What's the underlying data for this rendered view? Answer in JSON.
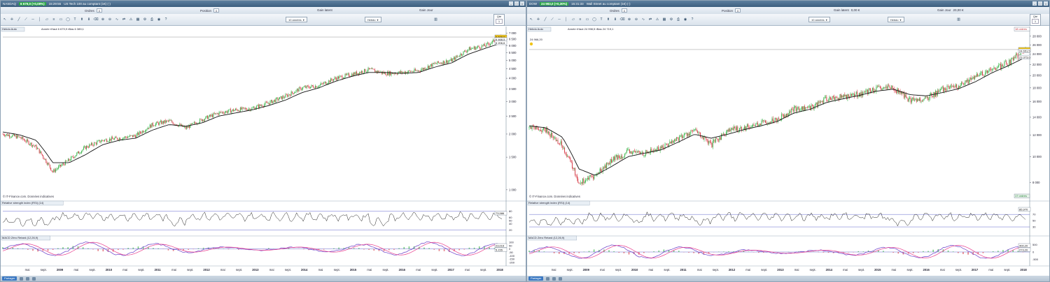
{
  "panes": [
    {
      "symbol": "NASDAQ",
      "price_change": "6 679,0 (+0,08%)",
      "time": "15:29:55",
      "instrument": "US Tech 100 au comptant (1€) (-)",
      "orders_label": "Ordres",
      "orders_value": "0",
      "position_label": "Position",
      "position_value": "0",
      "pnl_label": "Gain latent",
      "pnl_value": "",
      "day_label": "Gain Jour",
      "day_value": "",
      "qty_label": "Qté",
      "qty_value": "1",
      "period": "10 années",
      "chart_type": "Hebdo",
      "indicator_label": "Hebdo Auto",
      "info_line": "Année  ▪Haut 6 679,9 ▪Bas 6 389,1",
      "watermark": "© IT-Finance.com. Données indicatives",
      "rsi_label": "Relative strength index (RSI) (14)",
      "macd_label": "MACD Zéro Retard (12,26,9)",
      "share_label": "Partager",
      "price_tags": [
        "6 679,0",
        "6 468,5",
        "6 206,6"
      ],
      "orders_top": "",
      "orders_bottom": "",
      "level_label": "",
      "rsi_tag": "73,586",
      "macd_tags": [
        "23,019",
        "5,155"
      ]
    },
    {
      "symbol": "DOW",
      "price_change": "24 983,0 (+0,30%)",
      "time": "15:31:33",
      "instrument": "Wall Street au comptant (1€) (-)",
      "orders_label": "Ordres",
      "orders_value": "0",
      "position_label": "Position",
      "position_value": "0",
      "pnl_label": "Gain latent",
      "pnl_value": "0,00 €",
      "day_label": "Gain Jour",
      "day_value": "20,00 €",
      "qty_label": "Qté",
      "qty_value": "1",
      "period": "10 années",
      "chart_type": "Hebdo",
      "indicator_label": "Hebdo Auto",
      "info_line": "Année  ▪Haut 24 998,5 ▪Bas 24 719,1",
      "watermark": "© IT-Finance.com. Données indicatives",
      "rsi_label": "Relative strength index (RSI) (14)",
      "macd_label": "MACD Zéro Retard (12,26,9)",
      "share_label": "Partager",
      "price_tags": [
        "24 983,0",
        "24 651,5",
        "23 373,6"
      ],
      "orders_top": "18 ordres",
      "orders_bottom": "17 ordres",
      "level_label": "24 966,20",
      "rsi_tag": "85,970",
      "macd_tags": [
        "400,20",
        "273,20"
      ]
    }
  ],
  "chart_data": [
    {
      "type": "line",
      "title": "NASDAQ",
      "x": [
        "2008-01",
        "2008-05",
        "2008-09",
        "2009-01",
        "2009-05",
        "2009-09",
        "2010-01",
        "2010-05",
        "2010-09",
        "2011-01",
        "2011-05",
        "2011-09",
        "2012-01",
        "2012-05",
        "2012-09",
        "2013-01",
        "2013-05",
        "2013-09",
        "2014-01",
        "2014-05",
        "2014-09",
        "2015-01",
        "2015-05",
        "2015-09",
        "2016-01",
        "2016-05",
        "2016-09",
        "2017-01",
        "2017-05",
        "2017-09",
        "2018-01"
      ],
      "series": [
        {
          "values": [
            2000,
            1920,
            1700,
            1250,
            1450,
            1700,
            1850,
            1900,
            1960,
            2250,
            2350,
            2150,
            2400,
            2600,
            2700,
            2750,
            2950,
            3200,
            3550,
            3650,
            4000,
            4200,
            4450,
            4250,
            4300,
            4400,
            4800,
            5000,
            5750,
            6000,
            6679
          ]
        },
        {
          "values": [
            2050,
            1980,
            1850,
            1400,
            1400,
            1550,
            1750,
            1850,
            1900,
            2100,
            2250,
            2200,
            2300,
            2500,
            2600,
            2700,
            2850,
            3050,
            3350,
            3550,
            3850,
            4100,
            4300,
            4300,
            4250,
            4300,
            4600,
            4850,
            5400,
            5800,
            6206
          ]
        }
      ],
      "y_ticks": [
        "1 000",
        "1 500",
        "2 000",
        "2 500",
        "3 000",
        "3 500",
        "4 000",
        "4 500",
        "5 000",
        "5 500",
        "6 000",
        "6 500",
        "7 000"
      ],
      "x_ticks": [
        "mai",
        "sept.",
        "2009",
        "mai",
        "sept.",
        "2010",
        "mai",
        "sept.",
        "2011",
        "mai",
        "sept.",
        "2012",
        "mai",
        "sept.",
        "2013",
        "mai",
        "sept.",
        "2014",
        "mai",
        "sept.",
        "2015",
        "mai",
        "sept.",
        "2016",
        "mai",
        "sept.",
        "2017",
        "mai",
        "sept.",
        "2018"
      ],
      "ylim": [
        900,
        7100
      ],
      "log_scale": true,
      "rsi_ticks": [
        "80",
        "60",
        "50",
        "40",
        "20"
      ],
      "rsi_ylim": [
        10,
        95
      ],
      "macd_ticks": [
        "100",
        "50",
        "0",
        "-50",
        "-100",
        "-150",
        "-200"
      ],
      "macd_ylim": [
        -220,
        130
      ]
    },
    {
      "type": "line",
      "title": "DOW",
      "x": [
        "2008-01",
        "2008-05",
        "2008-09",
        "2009-01",
        "2009-05",
        "2009-09",
        "2010-01",
        "2010-05",
        "2010-09",
        "2011-01",
        "2011-05",
        "2011-09",
        "2012-01",
        "2012-05",
        "2012-09",
        "2013-01",
        "2013-05",
        "2013-09",
        "2014-01",
        "2014-05",
        "2014-09",
        "2015-01",
        "2015-05",
        "2015-09",
        "2016-01",
        "2016-05",
        "2016-09",
        "2017-01",
        "2017-05",
        "2017-09",
        "2018-01"
      ],
      "series": [
        {
          "values": [
            12800,
            12500,
            11000,
            8000,
            8500,
            9700,
            10400,
            10300,
            10800,
            11700,
            12500,
            11000,
            12500,
            12800,
            13300,
            13800,
            15000,
            15200,
            16400,
            16700,
            17100,
            17800,
            18000,
            16200,
            16400,
            17800,
            18200,
            19800,
            21000,
            22400,
            24983
          ]
        },
        {
          "values": [
            13000,
            12800,
            11800,
            9000,
            8500,
            9200,
            10000,
            10300,
            10600,
            11300,
            12100,
            11700,
            12100,
            12600,
            13000,
            13500,
            14500,
            15000,
            15900,
            16400,
            16900,
            17500,
            17800,
            17000,
            16800,
            17300,
            17900,
            19000,
            20500,
            21800,
            23373
          ]
        }
      ],
      "y_ticks": [
        "8 000",
        "10 000",
        "12 000",
        "14 000",
        "16 000",
        "18 000",
        "20 000",
        "22 000",
        "24 000",
        "26 000",
        "28 000"
      ],
      "x_ticks": [
        "mai",
        "sept.",
        "2009",
        "mai",
        "sept.",
        "2010",
        "mai",
        "sept.",
        "2011",
        "mai",
        "sept.",
        "2012",
        "mai",
        "sept.",
        "2013",
        "mai",
        "sept.",
        "2014",
        "mai",
        "sept.",
        "2015",
        "mai",
        "sept.",
        "2016",
        "mai",
        "sept.",
        "2017",
        "mai",
        "sept.",
        "2018"
      ],
      "ylim": [
        7000,
        29000
      ],
      "log_scale": true,
      "rsi_ticks": [
        "70",
        "50",
        "30"
      ],
      "rsi_ylim": [
        10,
        95
      ],
      "macd_ticks": [
        "500",
        "0",
        "-500"
      ],
      "macd_ylim": [
        -800,
        800
      ]
    }
  ],
  "colors": {
    "up": "#3cb44b",
    "down": "#d9434e",
    "ma": "#111111",
    "macd": "#6a3cc9",
    "signal": "#e83c8c",
    "rsi_fill": "#b5707a"
  }
}
